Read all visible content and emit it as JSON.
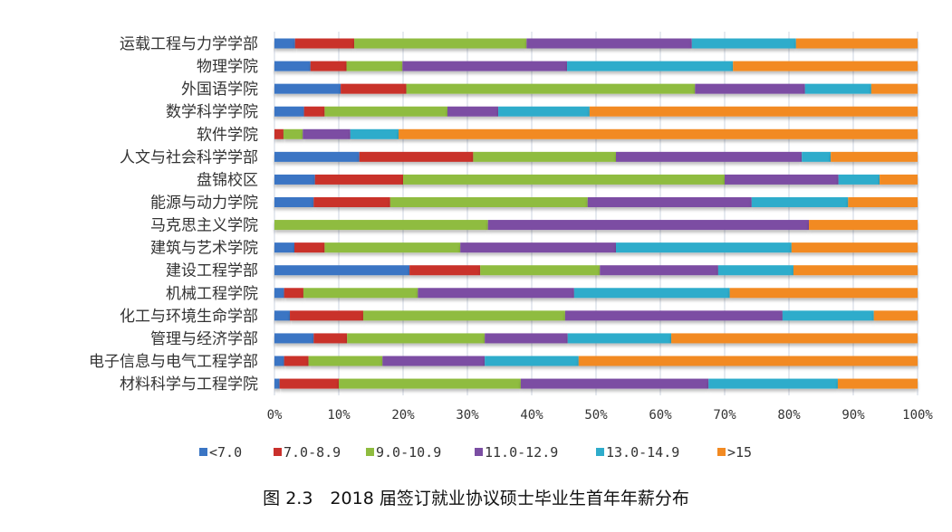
{
  "chart_data": {
    "type": "bar",
    "orientation": "horizontal",
    "stacked": "percent",
    "categories": [
      "运载工程与力学学部",
      "物理学院",
      "外国语学院",
      "数学科学学院",
      "软件学院",
      "人文与社会科学学部",
      "盘锦校区",
      "能源与动力学院",
      "马克思主义学院",
      "建筑与艺术学院",
      "建设工程学部",
      "机械工程学院",
      "化工与环境生命学部",
      "管理与经济学部",
      "电子信息与电气工程学部",
      "材料科学与工程学院"
    ],
    "series": [
      {
        "name": "<7.0",
        "color": "#3a75c4",
        "values": [
          3.2,
          5.6,
          10.3,
          4.6,
          0,
          13.2,
          6.3,
          6.1,
          0,
          3.1,
          21.0,
          1.5,
          2.4,
          6.1,
          1.5,
          0.8
        ]
      },
      {
        "name": "7.0-8.9",
        "color": "#c9302c",
        "values": [
          9.2,
          5.6,
          10.2,
          3.2,
          1.4,
          17.7,
          13.7,
          11.9,
          0,
          4.7,
          11.0,
          3.0,
          11.4,
          5.2,
          3.8,
          9.2
        ]
      },
      {
        "name": "9.0-10.9",
        "color": "#8fbc3f",
        "values": [
          26.8,
          8.7,
          44.9,
          19.1,
          3.0,
          22.2,
          50.0,
          30.7,
          33.2,
          21.1,
          18.6,
          17.8,
          31.4,
          21.4,
          11.5,
          28.3
        ]
      },
      {
        "name": "11.0-12.9",
        "color": "#7b4ea3",
        "values": [
          25.7,
          25.6,
          17.1,
          7.9,
          7.4,
          28.9,
          17.7,
          25.5,
          49.9,
          24.2,
          18.4,
          24.3,
          33.8,
          12.9,
          15.9,
          29.2
        ]
      },
      {
        "name": "13.0-14.9",
        "color": "#2eaccb",
        "values": [
          16.2,
          25.8,
          10.3,
          14.2,
          7.5,
          4.5,
          6.4,
          15.0,
          0,
          27.3,
          11.7,
          24.2,
          14.2,
          16.1,
          14.6,
          20.1
        ]
      },
      {
        "name": ">15",
        "color": "#f28a22",
        "values": [
          18.9,
          28.7,
          7.2,
          51.0,
          80.7,
          13.5,
          5.9,
          10.8,
          16.9,
          19.6,
          19.3,
          29.2,
          6.8,
          38.3,
          52.7,
          12.4
        ]
      }
    ],
    "xlim": [
      0,
      100
    ],
    "x_ticks": [
      "0%",
      "10%",
      "20%",
      "30%",
      "40%",
      "50%",
      "60%",
      "70%",
      "80%",
      "90%",
      "100%"
    ],
    "grid": true,
    "legend_position": "bottom"
  },
  "caption": "图 2.3　2018 届签订就业协议硕士毕业生首年年薪分布"
}
